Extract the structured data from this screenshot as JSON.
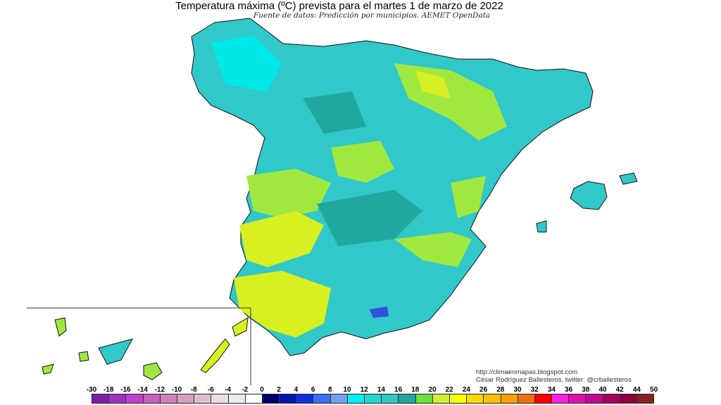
{
  "header": {
    "title": "Temperatura máxima (ºC) prevista para el martes 1 de marzo de 2022",
    "subtitle": "Fuente de datos: Predicción por municipios. AEMET OpenData"
  },
  "credits": {
    "url": "http://climaenmapas.blogspot.com",
    "author": "César Rodríguez Ballesteros, twitter: @crballesteros"
  },
  "legend": {
    "labels": [
      "-30",
      "-18",
      "-16",
      "-14",
      "-12",
      "-10",
      "-8",
      "-6",
      "-4",
      "-2",
      "0",
      "2",
      "4",
      "6",
      "8",
      "10",
      "12",
      "14",
      "16",
      "18",
      "20",
      "22",
      "24",
      "26",
      "28",
      "30",
      "32",
      "34",
      "36",
      "38",
      "40",
      "42",
      "44",
      "50"
    ],
    "colors": [
      "#7a1fa8",
      "#a030c0",
      "#c040d0",
      "#c860c0",
      "#d080b8",
      "#d8a0c0",
      "#e0c0d0",
      "#ecdce4",
      "#ececec",
      "#ffffff",
      "#000070",
      "#0018b0",
      "#1030e0",
      "#3870f0",
      "#70a0f0",
      "#00f0f0",
      "#20d8d0",
      "#30c8c8",
      "#20a8a0",
      "#70e040",
      "#d0f030",
      "#ffff00",
      "#ffd800",
      "#ffc000",
      "#ffa000",
      "#f07010",
      "#ff0000",
      "#ff20e0",
      "#e010b0",
      "#c00890",
      "#a80060",
      "#900040",
      "#882020"
    ]
  },
  "map_colors": {
    "base": "#30c8c8",
    "light": "#00e8e8",
    "dark": "#20a8a0",
    "green": "#a0e840",
    "yellow": "#d8f020",
    "blue": "#3050e0"
  }
}
